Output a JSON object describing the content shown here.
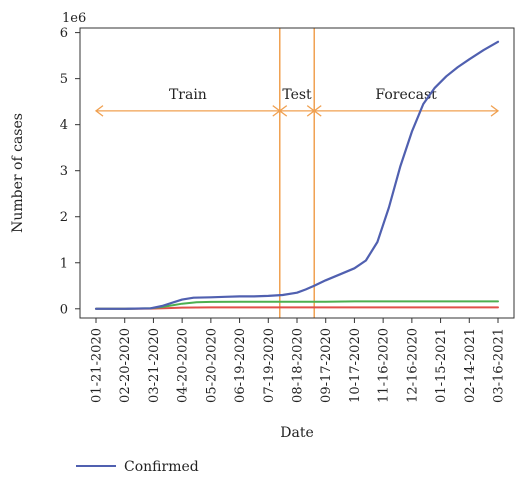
{
  "chart_data": {
    "type": "line",
    "title": "",
    "offset_label": "1e6",
    "xlabel": "Date",
    "ylabel": "Number of cases",
    "ylim": [
      -0.2,
      6.1
    ],
    "yticks": [
      0,
      1,
      2,
      3,
      4,
      5,
      6
    ],
    "categories": [
      "01-21-2020",
      "02-20-2020",
      "03-21-2020",
      "04-20-2020",
      "05-20-2020",
      "06-19-2020",
      "07-19-2020",
      "08-18-2020",
      "09-17-2020",
      "10-17-2020",
      "11-16-2020",
      "12-16-2020",
      "01-15-2021",
      "02-14-2021",
      "03-16-2021"
    ],
    "grid": false,
    "legend_position": "bottom-left",
    "series": [
      {
        "name": "Confirmed",
        "color": "#5060b0",
        "x": [
          0,
          1,
          1.9,
          2.3,
          2.7,
          3,
          3.4,
          4,
          4.5,
          5,
          5.5,
          6,
          6.5,
          7,
          7.3,
          7.6,
          8,
          8.5,
          9,
          9.4,
          9.8,
          10.2,
          10.6,
          11,
          11.4,
          11.8,
          12.2,
          12.6,
          13,
          13.5,
          14
        ],
        "y": [
          0,
          0,
          0.01,
          0.06,
          0.14,
          0.2,
          0.24,
          0.25,
          0.26,
          0.27,
          0.27,
          0.28,
          0.3,
          0.35,
          0.42,
          0.5,
          0.62,
          0.75,
          0.88,
          1.05,
          1.45,
          2.2,
          3.1,
          3.85,
          4.45,
          4.8,
          5.05,
          5.25,
          5.42,
          5.62,
          5.8
        ]
      },
      {
        "name": "",
        "color": "#4caf50",
        "x": [
          0,
          1,
          1.9,
          2.3,
          2.7,
          3,
          3.5,
          4,
          5,
          6,
          7,
          8,
          9,
          10,
          11,
          12,
          13,
          14
        ],
        "y": [
          0,
          0,
          0.01,
          0.04,
          0.08,
          0.11,
          0.14,
          0.15,
          0.155,
          0.155,
          0.155,
          0.155,
          0.16,
          0.16,
          0.16,
          0.16,
          0.16,
          0.16
        ]
      },
      {
        "name": "",
        "color": "#e0504a",
        "x": [
          0,
          1,
          1.9,
          2.5,
          3,
          4,
          5,
          6,
          7,
          8,
          9,
          10,
          11,
          12,
          13,
          14
        ],
        "y": [
          0,
          0,
          0.005,
          0.015,
          0.025,
          0.03,
          0.03,
          0.03,
          0.03,
          0.03,
          0.03,
          0.03,
          0.03,
          0.03,
          0.03,
          0.03
        ]
      }
    ],
    "annotations": {
      "split_lines_x": [
        6.4,
        7.6
      ],
      "arrow_y": 4.3,
      "color": "#f0a050",
      "segments": [
        {
          "label": "Train",
          "from": 0,
          "to": 6.4
        },
        {
          "label": "Test",
          "from": 6.4,
          "to": 7.6
        },
        {
          "label": "Forecast",
          "from": 7.6,
          "to": 14
        }
      ]
    }
  }
}
